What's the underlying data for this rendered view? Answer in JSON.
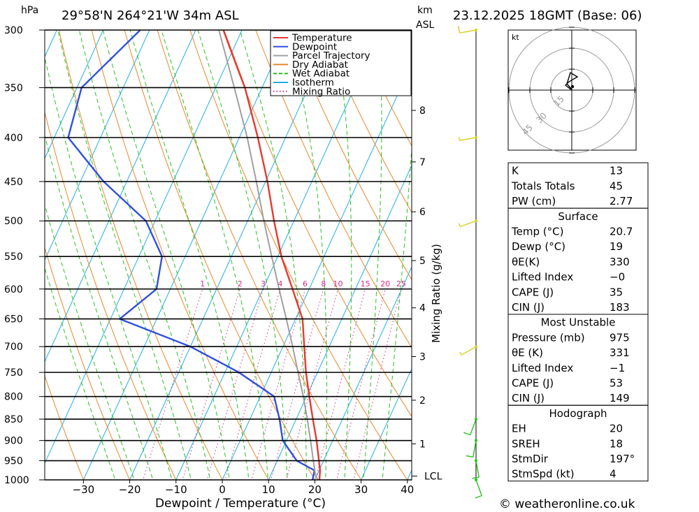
{
  "header": {
    "location": "29°58'N  264°21'W  34m  ASL",
    "datetime": "23.12.2025  18GMT  (Base: 06)"
  },
  "axes": {
    "hpa_label": "hPa",
    "km_label": "km",
    "asl_label": "ASL",
    "x_title": "Dewpoint / Temperature (°C)",
    "mixing_ratio_title": "Mixing Ratio (g/kg)",
    "lcl_label": "LCL"
  },
  "legend": [
    {
      "label": "Temperature",
      "color": "#e8372f"
    },
    {
      "label": "Dewpoint",
      "color": "#2f4fe0"
    },
    {
      "label": "Parcel Trajectory",
      "color": "#a0a0a0"
    },
    {
      "label": "Dry Adiabat",
      "color": "#e8872a"
    },
    {
      "label": "Wet Adiabat",
      "color": "#27c21f"
    },
    {
      "label": "Isotherm",
      "color": "#21aee6"
    },
    {
      "label": "Mixing Ratio",
      "color": "#d42d8c"
    }
  ],
  "hodograph": {
    "unit": "kt",
    "rings": [
      "15",
      "30",
      "45"
    ]
  },
  "indices": {
    "general": [
      {
        "label": "K",
        "value": "13"
      },
      {
        "label": "Totals Totals",
        "value": "45"
      },
      {
        "label": "PW (cm)",
        "value": "2.77"
      }
    ],
    "surface_title": "Surface",
    "surface": [
      {
        "label": "Temp (°C)",
        "value": "20.7"
      },
      {
        "label": "Dewp (°C)",
        "value": "19"
      },
      {
        "label": "θE(K)",
        "value": "330"
      },
      {
        "label": "Lifted Index",
        "value": "−0"
      },
      {
        "label": "CAPE (J)",
        "value": "35"
      },
      {
        "label": "CIN (J)",
        "value": "183"
      }
    ],
    "mu_title": "Most Unstable",
    "mu": [
      {
        "label": "Pressure (mb)",
        "value": "975"
      },
      {
        "label": "θE (K)",
        "value": "331"
      },
      {
        "label": "Lifted Index",
        "value": "−1"
      },
      {
        "label": "CAPE (J)",
        "value": "53"
      },
      {
        "label": "CIN (J)",
        "value": "149"
      }
    ],
    "hodo_title": "Hodograph",
    "hodo": [
      {
        "label": "EH",
        "value": "20"
      },
      {
        "label": "SREH",
        "value": "18"
      },
      {
        "label": "StmDir",
        "value": "197°"
      },
      {
        "label": "StmSpd (kt)",
        "value": "4"
      }
    ]
  },
  "watermark": "© weatheronline.co.uk",
  "chart_data": {
    "type": "skew-t",
    "xlabel": "Dewpoint / Temperature (°C)",
    "ylabel": "hPa",
    "xlim": [
      -40,
      40
    ],
    "ylim": [
      1000,
      300
    ],
    "pressure_levels": [
      300,
      350,
      400,
      450,
      500,
      550,
      600,
      650,
      700,
      750,
      800,
      850,
      900,
      950,
      1000
    ],
    "x_ticks": [
      -30,
      -20,
      -10,
      0,
      10,
      20,
      30,
      40
    ],
    "km_ticks": [
      {
        "km": "1",
        "p": 908
      },
      {
        "km": "2",
        "p": 808
      },
      {
        "km": "3",
        "p": 719
      },
      {
        "km": "4",
        "p": 631
      },
      {
        "km": "5",
        "p": 556
      },
      {
        "km": "6",
        "p": 488
      },
      {
        "km": "7",
        "p": 427
      },
      {
        "km": "8",
        "p": 372
      }
    ],
    "mixing_ratio_labels": [
      "1",
      "2",
      "3",
      "4",
      "6",
      "8",
      "10",
      "15",
      "20",
      "25"
    ],
    "series": [
      {
        "name": "Temperature",
        "points": [
          {
            "p": 1000,
            "t": 21.0
          },
          {
            "p": 975,
            "t": 20.2
          },
          {
            "p": 950,
            "t": 19.0
          },
          {
            "p": 900,
            "t": 16.5
          },
          {
            "p": 850,
            "t": 13.6
          },
          {
            "p": 800,
            "t": 10.6
          },
          {
            "p": 750,
            "t": 7.5
          },
          {
            "p": 700,
            "t": 4.6
          },
          {
            "p": 650,
            "t": 1.5
          },
          {
            "p": 600,
            "t": -3.6
          },
          {
            "p": 550,
            "t": -9.2
          },
          {
            "p": 500,
            "t": -14.3
          },
          {
            "p": 450,
            "t": -19.6
          },
          {
            "p": 400,
            "t": -26.0
          },
          {
            "p": 350,
            "t": -33.7
          },
          {
            "p": 300,
            "t": -44.0
          }
        ]
      },
      {
        "name": "Dewpoint",
        "points": [
          {
            "p": 1000,
            "t": 19.5
          },
          {
            "p": 975,
            "t": 19.0
          },
          {
            "p": 950,
            "t": 14.2
          },
          {
            "p": 900,
            "t": 9.2
          },
          {
            "p": 850,
            "t": 6.4
          },
          {
            "p": 800,
            "t": 3.0
          },
          {
            "p": 750,
            "t": -7.0
          },
          {
            "p": 700,
            "t": -20.0
          },
          {
            "p": 650,
            "t": -38.0
          },
          {
            "p": 600,
            "t": -33.0
          },
          {
            "p": 550,
            "t": -35.0
          },
          {
            "p": 500,
            "t": -42.0
          },
          {
            "p": 450,
            "t": -55.0
          },
          {
            "p": 400,
            "t": -67.0
          },
          {
            "p": 350,
            "t": -69.0
          },
          {
            "p": 300,
            "t": -62.0
          }
        ]
      },
      {
        "name": "Parcel Trajectory",
        "points": [
          {
            "p": 1000,
            "t": 20.7
          },
          {
            "p": 990,
            "t": 19.8
          },
          {
            "p": 950,
            "t": 17.8
          },
          {
            "p": 900,
            "t": 15.2
          },
          {
            "p": 850,
            "t": 12.4
          },
          {
            "p": 800,
            "t": 9.3
          },
          {
            "p": 750,
            "t": 5.8
          },
          {
            "p": 700,
            "t": 2.1
          },
          {
            "p": 650,
            "t": -2.0
          },
          {
            "p": 600,
            "t": -6.5
          },
          {
            "p": 550,
            "t": -11.3
          },
          {
            "p": 500,
            "t": -16.5
          },
          {
            "p": 450,
            "t": -22.0
          },
          {
            "p": 400,
            "t": -28.3
          },
          {
            "p": 350,
            "t": -36.0
          },
          {
            "p": 300,
            "t": -45.0
          }
        ]
      }
    ],
    "wind_profile": [
      {
        "p": 1000,
        "speed_kt": 10,
        "dir_deg": 160
      },
      {
        "p": 950,
        "speed_kt": 10,
        "dir_deg": 170
      },
      {
        "p": 900,
        "speed_kt": 10,
        "dir_deg": 190
      },
      {
        "p": 850,
        "speed_kt": 10,
        "dir_deg": 200
      },
      {
        "p": 700,
        "speed_kt": 5,
        "dir_deg": 240
      },
      {
        "p": 500,
        "speed_kt": 5,
        "dir_deg": 250
      },
      {
        "p": 400,
        "speed_kt": 5,
        "dir_deg": 260
      },
      {
        "p": 300,
        "speed_kt": 10,
        "dir_deg": 260
      }
    ],
    "lcl_p": 990
  }
}
